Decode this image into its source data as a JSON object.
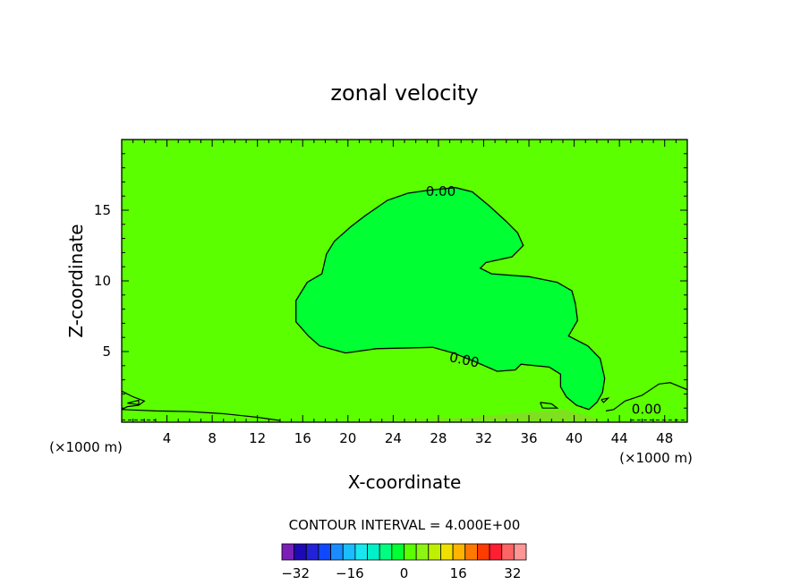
{
  "chart_data": {
    "type": "contour",
    "title": "zonal velocity",
    "xlabel": "X-coordinate",
    "ylabel": "Z-coordinate",
    "x_unit": "(×1000 m)",
    "y_unit": "(×1000 m)",
    "xlim": [
      0,
      50
    ],
    "ylim": [
      0,
      20
    ],
    "x_ticks": [
      4,
      8,
      12,
      16,
      20,
      24,
      28,
      32,
      36,
      40,
      44,
      48
    ],
    "y_ticks": [
      5,
      10,
      15
    ],
    "contour_interval_text": "CONTOUR INTERVAL = 4.000E+00",
    "contour_interval": 4,
    "contour_labels": [
      "0.00",
      "0.00",
      "0.00"
    ],
    "background_field_value": 0,
    "regions": [
      {
        "name": "negative-zonal-flow",
        "level": -2,
        "color": "#00ff33",
        "boundary": [
          [
            27,
            16.4
          ],
          [
            29.5,
            16.6
          ],
          [
            31,
            16.3
          ],
          [
            32.5,
            15.3
          ],
          [
            34,
            14.2
          ],
          [
            35,
            13.4
          ],
          [
            35.5,
            12.5
          ],
          [
            34.5,
            11.7
          ],
          [
            32.2,
            11.3
          ],
          [
            31.7,
            10.9
          ],
          [
            32.7,
            10.5
          ],
          [
            36,
            10.3
          ],
          [
            38.5,
            9.9
          ],
          [
            39.8,
            9.3
          ],
          [
            40.1,
            8.4
          ],
          [
            40.3,
            7.2
          ],
          [
            39.5,
            6.1
          ],
          [
            41.2,
            5.4
          ],
          [
            42.3,
            4.5
          ],
          [
            42.7,
            3.1
          ],
          [
            42.5,
            2.1
          ],
          [
            42,
            1.4
          ],
          [
            41.3,
            0.9
          ],
          [
            40.2,
            1.2
          ],
          [
            39.3,
            1.8
          ],
          [
            38.8,
            2.5
          ],
          [
            38.8,
            3.4
          ],
          [
            37.8,
            3.9
          ],
          [
            35.3,
            4.1
          ],
          [
            34.8,
            3.7
          ],
          [
            33.2,
            3.6
          ],
          [
            31.2,
            4.3
          ],
          [
            29.3,
            4.9
          ],
          [
            27.5,
            5.3
          ],
          [
            22.5,
            5.2
          ],
          [
            19.8,
            4.9
          ],
          [
            17.5,
            5.4
          ],
          [
            16.5,
            6.1
          ],
          [
            15.4,
            7.1
          ],
          [
            15.4,
            8.6
          ],
          [
            16.4,
            9.9
          ],
          [
            17.7,
            10.5
          ],
          [
            18.1,
            11.9
          ],
          [
            18.8,
            12.8
          ],
          [
            20.2,
            13.8
          ],
          [
            21.5,
            14.6
          ],
          [
            23.5,
            15.7
          ],
          [
            25.3,
            16.2
          ],
          [
            27,
            16.4
          ]
        ]
      },
      {
        "name": "near-bottom-band",
        "level": 4,
        "color": "#80e020",
        "boundary": [
          [
            8,
            0.1
          ],
          [
            20,
            0.12
          ],
          [
            28,
            0.28
          ],
          [
            30,
            0.3
          ],
          [
            36,
            0.7
          ],
          [
            38.5,
            0.8
          ],
          [
            39,
            0.9
          ],
          [
            41,
            0.5
          ],
          [
            42.5,
            0.1
          ],
          [
            8,
            0.1
          ]
        ]
      }
    ],
    "colorbar": {
      "tick_labels": [
        "-32",
        "-16",
        "0",
        "16",
        "32"
      ],
      "tick_values": [
        -32,
        -16,
        0,
        16,
        32
      ],
      "min": -36,
      "max": 36,
      "colors": [
        "#7a1fb8",
        "#1e0ab4",
        "#2222d8",
        "#0f49ff",
        "#1a8cff",
        "#1abeff",
        "#1ae6f0",
        "#00f0c8",
        "#00ff80",
        "#00ff33",
        "#5bff00",
        "#8cf514",
        "#bff000",
        "#f0e000",
        "#ffb400",
        "#ff7800",
        "#ff3c00",
        "#ff1e32",
        "#ff6464",
        "#ff9696"
      ]
    }
  }
}
